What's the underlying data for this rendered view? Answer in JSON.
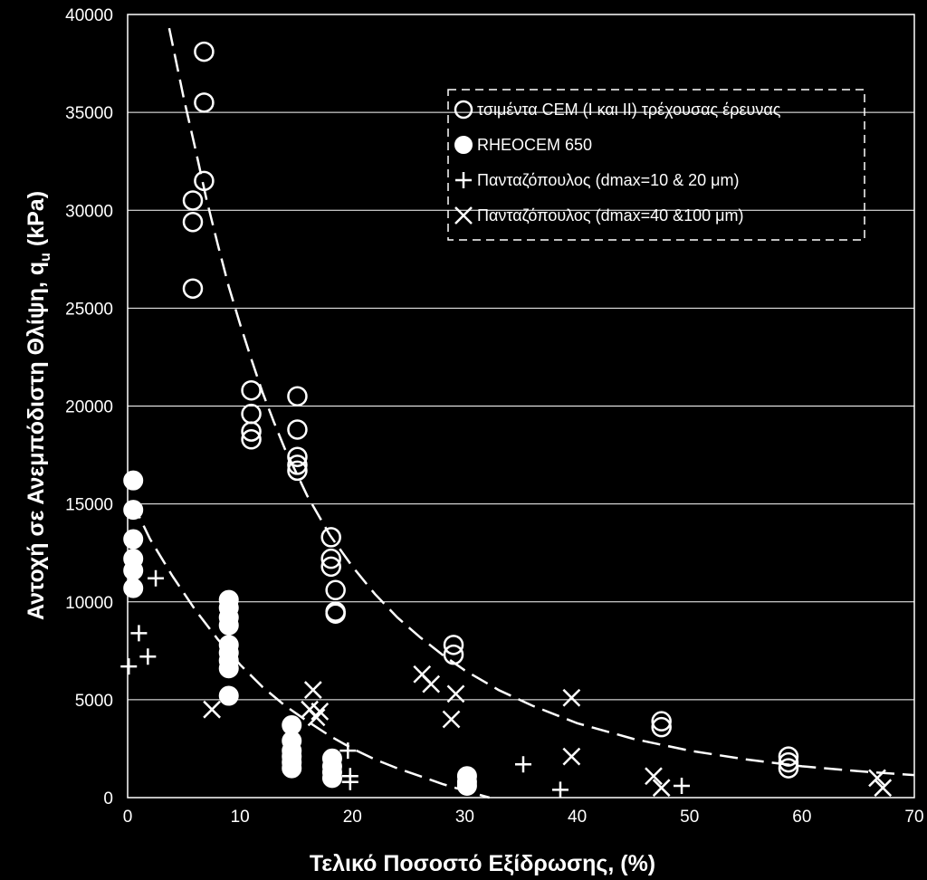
{
  "chart_data": {
    "type": "scatter",
    "xlabel": "Τελικό Ποσοστό Εξίδρωσης, (%)",
    "ylabel": "Αντοχή σε Ανεμπόδιστη Θλίψη, q",
    "ylabel_sub": "u",
    "ylabel_unit": " (kPa)",
    "xlim": [
      0,
      70
    ],
    "ylim": [
      0,
      40000
    ],
    "x_ticks": [
      "0",
      "10",
      "20",
      "30",
      "40",
      "50",
      "60",
      "70"
    ],
    "y_ticks": [
      "0",
      "5000",
      "10000",
      "15000",
      "20000",
      "25000",
      "30000",
      "35000",
      "40000"
    ],
    "grid": "horizontal",
    "legend_position": "top-right",
    "series": [
      {
        "name": "τσιμέντα CEM (I και II) τρέχουσας έρευνας",
        "marker": "open-circle",
        "points": [
          [
            6.8,
            38100
          ],
          [
            6.8,
            35500
          ],
          [
            6.8,
            31500
          ],
          [
            5.8,
            30500
          ],
          [
            5.8,
            29400
          ],
          [
            5.8,
            26000
          ],
          [
            11,
            20800
          ],
          [
            11,
            19600
          ],
          [
            11,
            18700
          ],
          [
            11,
            18300
          ],
          [
            15.1,
            20500
          ],
          [
            15.1,
            18800
          ],
          [
            15.1,
            17400
          ],
          [
            15.1,
            17000
          ],
          [
            15.1,
            16700
          ],
          [
            18.1,
            13300
          ],
          [
            18.1,
            12200
          ],
          [
            18.1,
            11800
          ],
          [
            18.5,
            10600
          ],
          [
            18.5,
            9500
          ],
          [
            18.5,
            9400
          ],
          [
            29,
            7800
          ],
          [
            29,
            7300
          ],
          [
            47.5,
            3900
          ],
          [
            47.5,
            3600
          ],
          [
            58.8,
            2100
          ],
          [
            58.8,
            1800
          ],
          [
            58.8,
            1500
          ]
        ]
      },
      {
        "name": "RHEOCEM 650",
        "marker": "filled-circle",
        "points": [
          [
            0.5,
            16200
          ],
          [
            0.5,
            14700
          ],
          [
            0.5,
            13200
          ],
          [
            0.5,
            12200
          ],
          [
            0.5,
            11600
          ],
          [
            0.5,
            10700
          ],
          [
            9,
            10100
          ],
          [
            9,
            9700
          ],
          [
            9,
            9200
          ],
          [
            9,
            8800
          ],
          [
            9,
            7800
          ],
          [
            9,
            7400
          ],
          [
            9,
            7000
          ],
          [
            9,
            6600
          ],
          [
            9,
            5200
          ],
          [
            14.6,
            3700
          ],
          [
            14.6,
            2900
          ],
          [
            14.6,
            2400
          ],
          [
            14.6,
            2100
          ],
          [
            14.6,
            1800
          ],
          [
            14.6,
            1500
          ],
          [
            18.2,
            2000
          ],
          [
            18.2,
            1600
          ],
          [
            18.2,
            1300
          ],
          [
            18.2,
            1000
          ],
          [
            30.2,
            1100
          ],
          [
            30.2,
            800
          ],
          [
            30.2,
            600
          ]
        ]
      },
      {
        "name": "Πανταζόπουλος (dmax=10 & 20 μm)",
        "marker": "plus",
        "points": [
          [
            0.1,
            6700
          ],
          [
            1,
            8400
          ],
          [
            1.8,
            7200
          ],
          [
            2.5,
            11200
          ],
          [
            19.6,
            2400
          ],
          [
            19.8,
            1100
          ],
          [
            19.8,
            800
          ],
          [
            35.2,
            1700
          ],
          [
            38.5,
            400
          ],
          [
            49.3,
            600
          ]
        ]
      },
      {
        "name": "Πανταζόπουλος (dmax=40 &100 μm)",
        "marker": "cross",
        "points": [
          [
            7.5,
            4500
          ],
          [
            16.2,
            4500
          ],
          [
            16.5,
            5500
          ],
          [
            16.8,
            4100
          ],
          [
            17.1,
            4400
          ],
          [
            26.2,
            6300
          ],
          [
            27,
            5800
          ],
          [
            29.2,
            5300
          ],
          [
            28.8,
            4000
          ],
          [
            39.5,
            5100
          ],
          [
            39.5,
            2100
          ],
          [
            46.8,
            1100
          ],
          [
            47.5,
            500
          ],
          [
            66.7,
            1000
          ],
          [
            67.2,
            500
          ]
        ]
      }
    ],
    "trend_lines": [
      {
        "for_series": "τσιμέντα CEM (I και II) τρέχουσας έρευνας",
        "style": "dashed",
        "points": [
          [
            3.7,
            39300
          ],
          [
            5,
            35700
          ],
          [
            6,
            33200
          ],
          [
            7,
            30600
          ],
          [
            8,
            28300
          ],
          [
            9,
            26100
          ],
          [
            10,
            24200
          ],
          [
            11,
            22400
          ],
          [
            12,
            20700
          ],
          [
            13,
            19200
          ],
          [
            14,
            17800
          ],
          [
            15,
            16600
          ],
          [
            16,
            15400
          ],
          [
            18,
            13400
          ],
          [
            20,
            11800
          ],
          [
            22,
            10400
          ],
          [
            24,
            9200
          ],
          [
            26,
            8200
          ],
          [
            28,
            7300
          ],
          [
            30,
            6500
          ],
          [
            33,
            5500
          ],
          [
            36,
            4700
          ],
          [
            40,
            3800
          ],
          [
            45,
            3000
          ],
          [
            50,
            2400
          ],
          [
            55,
            1950
          ],
          [
            60,
            1600
          ],
          [
            65,
            1350
          ],
          [
            70,
            1150
          ]
        ]
      },
      {
        "for_series": "RHEOCEM 650",
        "style": "dashed",
        "points": [
          [
            0.4,
            15100
          ],
          [
            2,
            13200
          ],
          [
            4,
            11300
          ],
          [
            6,
            9600
          ],
          [
            8,
            8100
          ],
          [
            10,
            6800
          ],
          [
            12,
            5650
          ],
          [
            14,
            4700
          ],
          [
            16,
            3900
          ],
          [
            18,
            3150
          ],
          [
            20,
            2500
          ],
          [
            22,
            1950
          ],
          [
            24,
            1500
          ],
          [
            26,
            1100
          ],
          [
            28,
            700
          ],
          [
            30,
            350
          ],
          [
            32.2,
            0
          ]
        ]
      }
    ]
  }
}
